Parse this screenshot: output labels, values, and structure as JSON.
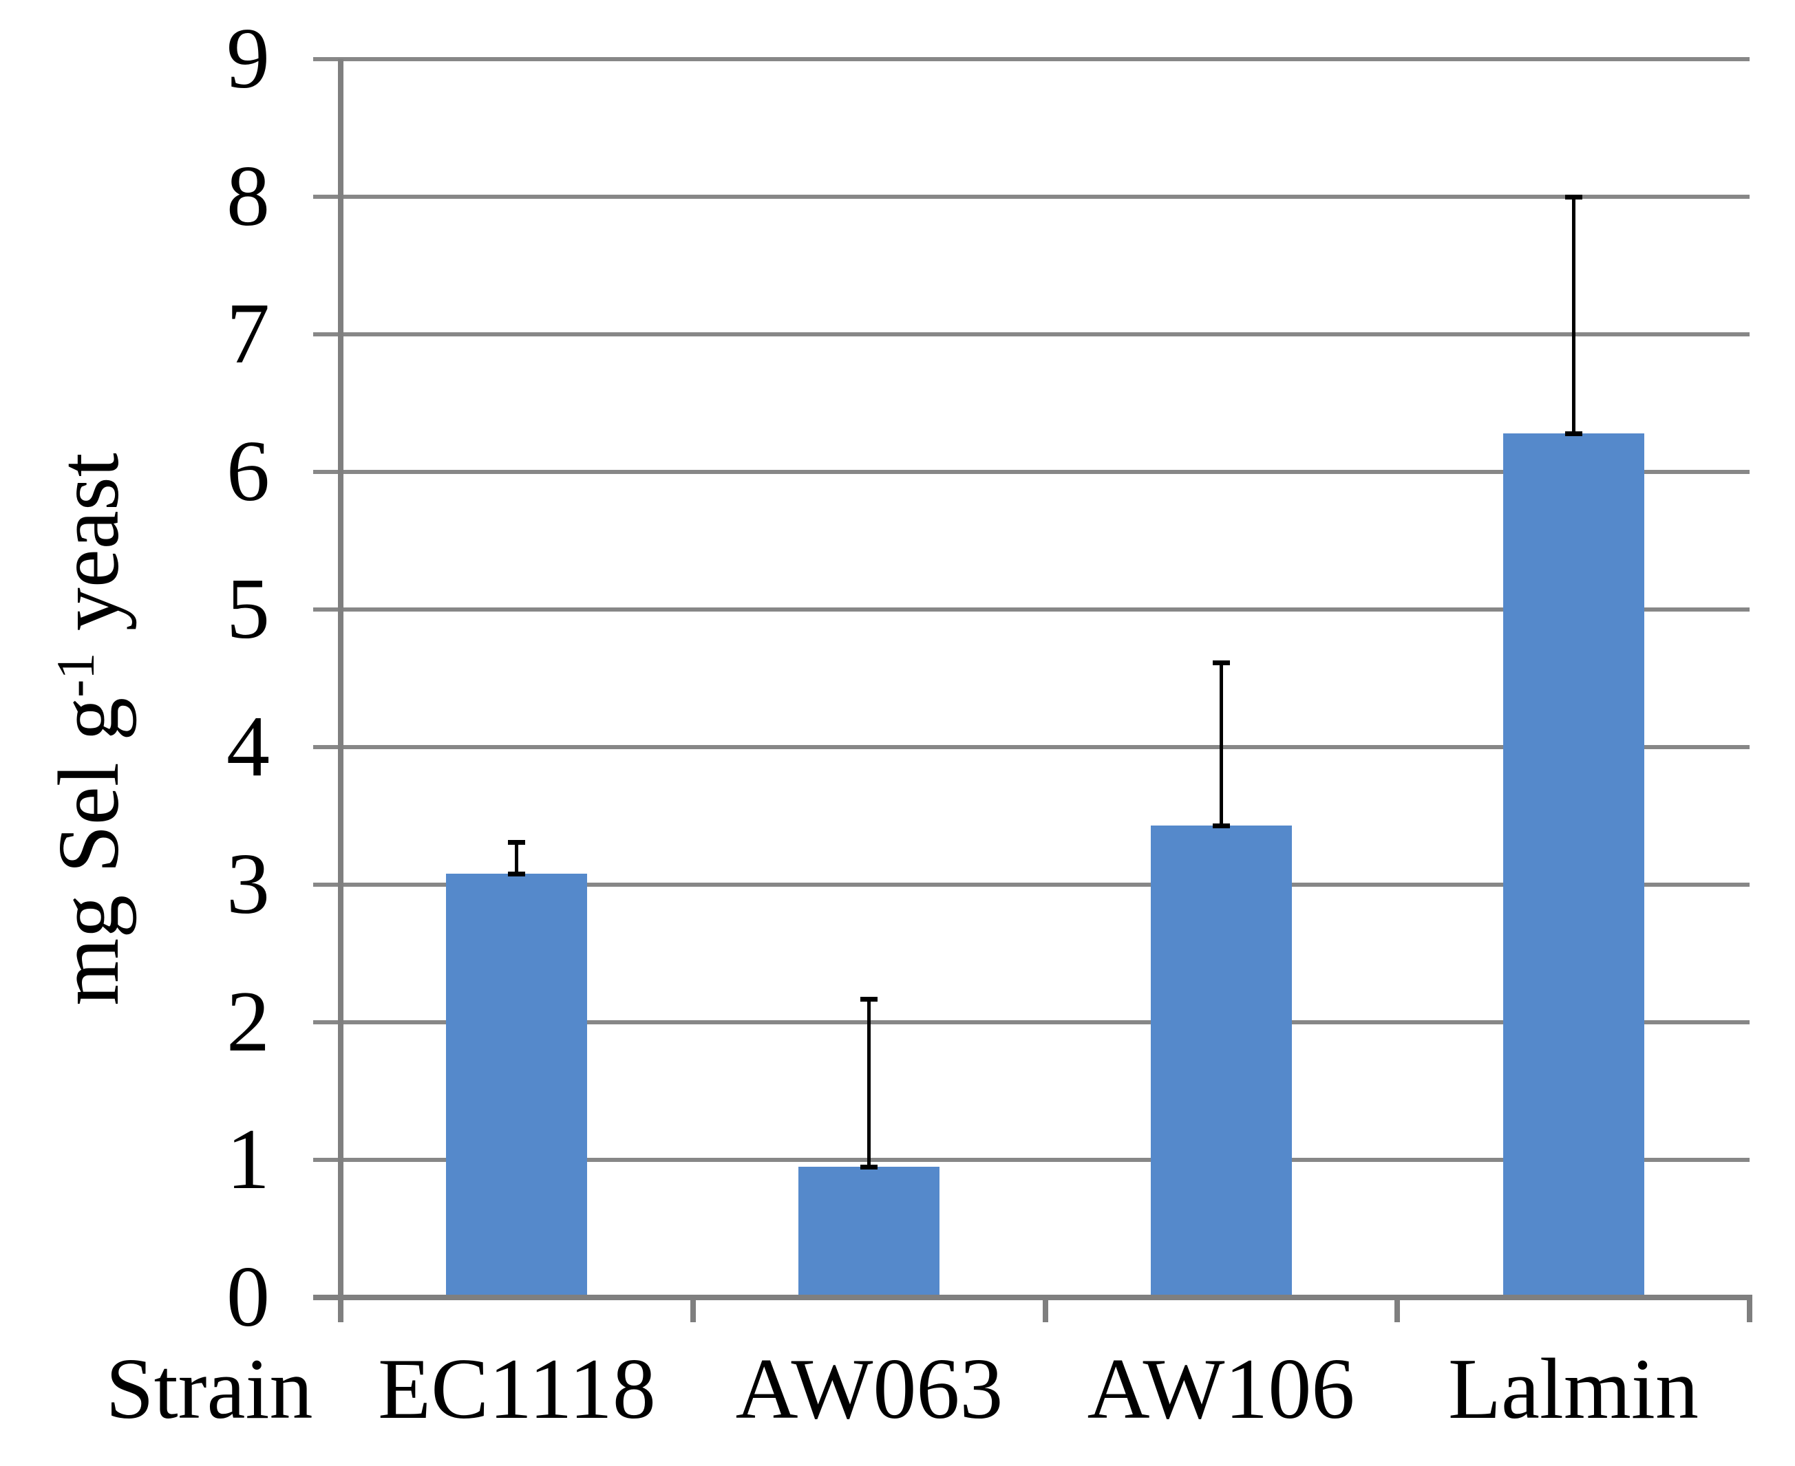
{
  "chart_data": {
    "type": "bar",
    "categories": [
      "EC1118",
      "AW063",
      "AW106",
      "Lalmin"
    ],
    "values": [
      3.08,
      0.95,
      3.43,
      6.28
    ],
    "error_up": [
      0.23,
      1.22,
      1.18,
      1.72
    ],
    "x_axis_title": "Strain",
    "ylabel": "mg Sel g-1 yeast",
    "ylabel_parts": {
      "prefix": "mg Sel g",
      "superscript": "-1",
      "suffix": " yeast"
    },
    "ylim": [
      0,
      9
    ],
    "ytick_step": 1,
    "yticks": [
      0,
      1,
      2,
      3,
      4,
      5,
      6,
      7,
      8,
      9
    ],
    "grid": true,
    "legend": "none",
    "colors": {
      "bar": "#5589CB",
      "gridline": "#878787",
      "axis": "#7F7F7F",
      "error": "#000000",
      "text": "#000000",
      "background": "#FFFFFF"
    }
  }
}
